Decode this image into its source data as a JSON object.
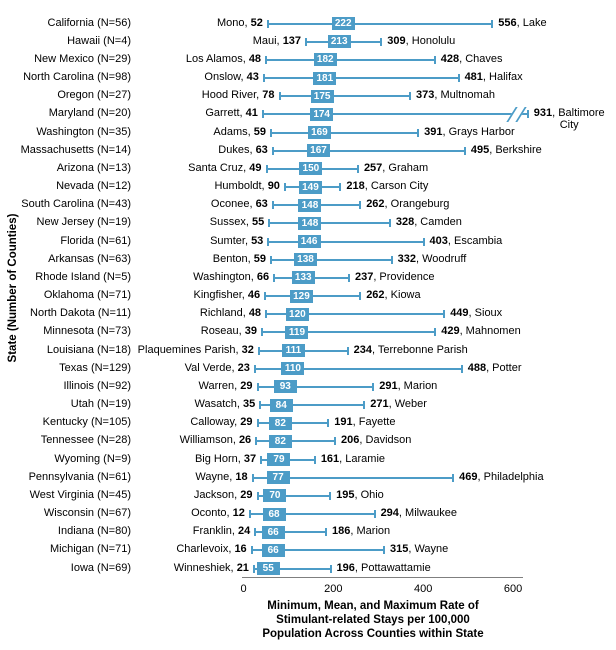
{
  "chart_data": {
    "type": "range",
    "title": "",
    "xlabel": "Minimum, Mean, and Maximum Rate of Stimulant-related Stays per 100,000 Population Across Counties within State",
    "xlabel_lines": [
      "Minimum, Mean, and Maximum Rate of",
      "Stimulant-related Stays per 100,000",
      "Population Across  Counties within State"
    ],
    "ylabel": "State (Number of Counties)",
    "xlim": [
      0,
      600
    ],
    "xticks": [
      0,
      200,
      400,
      600
    ],
    "legend": "none",
    "grid": false,
    "colors": {
      "bar": "#4C9CC7",
      "mean_text": "#ffffff",
      "axis": "#7f7f7f",
      "text": "#000000"
    },
    "rows": [
      {
        "state": "California",
        "n": 56,
        "min_county": "Mono",
        "min": 52,
        "mean": 222,
        "max": 556,
        "max_county": "Lake"
      },
      {
        "state": "Hawaii",
        "n": 4,
        "min_county": "Maui",
        "min": 137,
        "mean": 213,
        "max": 309,
        "max_county": "Honolulu"
      },
      {
        "state": "New Mexico",
        "n": 29,
        "min_county": "Los Alamos",
        "min": 48,
        "mean": 182,
        "max": 428,
        "max_county": "Chaves"
      },
      {
        "state": "North Carolina",
        "n": 98,
        "min_county": "Onslow",
        "min": 43,
        "mean": 181,
        "max": 481,
        "max_county": "Halifax"
      },
      {
        "state": "Oregon",
        "n": 27,
        "min_county": "Hood River",
        "min": 78,
        "mean": 175,
        "max": 373,
        "max_county": "Multnomah"
      },
      {
        "state": "Maryland",
        "n": 20,
        "min_county": "Garrett",
        "min": 41,
        "mean": 174,
        "max": 931,
        "max_county": "Baltimore City",
        "max_county_lines": [
          "Baltimore",
          "City"
        ],
        "axis_break": true,
        "display_max": 635
      },
      {
        "state": "Washington",
        "n": 35,
        "min_county": "Adams",
        "min": 59,
        "mean": 169,
        "max": 391,
        "max_county": "Grays Harbor"
      },
      {
        "state": "Massachusetts",
        "n": 14,
        "min_county": "Dukes",
        "min": 63,
        "mean": 167,
        "max": 495,
        "max_county": "Berkshire"
      },
      {
        "state": "Arizona",
        "n": 13,
        "min_county": "Santa Cruz",
        "min": 49,
        "mean": 150,
        "max": 257,
        "max_county": "Graham"
      },
      {
        "state": "Nevada",
        "n": 12,
        "min_county": "Humboldt",
        "min": 90,
        "mean": 149,
        "max": 218,
        "max_county": "Carson City"
      },
      {
        "state": "South Carolina",
        "n": 43,
        "min_county": "Oconee",
        "min": 63,
        "mean": 148,
        "max": 262,
        "max_county": "Orangeburg"
      },
      {
        "state": "New Jersey",
        "n": 19,
        "min_county": "Sussex",
        "min": 55,
        "mean": 148,
        "max": 328,
        "max_county": "Camden"
      },
      {
        "state": "Florida",
        "n": 61,
        "min_county": "Sumter",
        "min": 53,
        "mean": 146,
        "max": 403,
        "max_county": "Escambia"
      },
      {
        "state": "Arkansas",
        "n": 63,
        "min_county": "Benton",
        "min": 59,
        "mean": 138,
        "max": 332,
        "max_county": "Woodruff"
      },
      {
        "state": "Rhode Island",
        "n": 5,
        "min_county": "Washington",
        "min": 66,
        "mean": 133,
        "max": 237,
        "max_county": "Providence"
      },
      {
        "state": "Oklahoma",
        "n": 71,
        "min_county": "Kingfisher",
        "min": 46,
        "mean": 129,
        "max": 262,
        "max_county": "Kiowa"
      },
      {
        "state": "North Dakota",
        "n": 11,
        "min_county": "Richland",
        "min": 48,
        "mean": 120,
        "max": 449,
        "max_county": "Sioux"
      },
      {
        "state": "Minnesota",
        "n": 73,
        "min_county": "Roseau",
        "min": 39,
        "mean": 119,
        "max": 429,
        "max_county": "Mahnomen"
      },
      {
        "state": "Louisiana",
        "n": 18,
        "min_county": "Plaquemines Parish",
        "min": 32,
        "mean": 111,
        "max": 234,
        "max_county": "Terrebonne Parish"
      },
      {
        "state": "Texas",
        "n": 129,
        "min_county": "Val Verde",
        "min": 23,
        "mean": 110,
        "max": 488,
        "max_county": "Potter"
      },
      {
        "state": "Illinois",
        "n": 92,
        "min_county": "Warren",
        "min": 29,
        "mean": 93,
        "max": 291,
        "max_county": "Marion"
      },
      {
        "state": "Utah",
        "n": 19,
        "min_county": "Wasatch",
        "min": 35,
        "mean": 84,
        "max": 271,
        "max_county": "Weber"
      },
      {
        "state": "Kentucky",
        "n": 105,
        "min_county": "Calloway",
        "min": 29,
        "mean": 82,
        "max": 191,
        "max_county": "Fayette"
      },
      {
        "state": "Tennessee",
        "n": 28,
        "min_county": "Williamson",
        "min": 26,
        "mean": 82,
        "max": 206,
        "max_county": "Davidson"
      },
      {
        "state": "Wyoming",
        "n": 9,
        "min_county": "Big Horn",
        "min": 37,
        "mean": 79,
        "max": 161,
        "max_county": "Laramie"
      },
      {
        "state": "Pennsylvania",
        "n": 61,
        "min_county": "Wayne",
        "min": 18,
        "mean": 77,
        "max": 469,
        "max_county": "Philadelphia"
      },
      {
        "state": "West Virginia",
        "n": 45,
        "min_county": "Jackson",
        "min": 29,
        "mean": 70,
        "max": 195,
        "max_county": "Ohio"
      },
      {
        "state": "Wisconsin",
        "n": 67,
        "min_county": "Oconto",
        "min": 12,
        "mean": 68,
        "max": 294,
        "max_county": "Milwaukee"
      },
      {
        "state": "Indiana",
        "n": 80,
        "min_county": "Franklin",
        "min": 24,
        "mean": 66,
        "max": 186,
        "max_county": "Marion"
      },
      {
        "state": "Michigan",
        "n": 71,
        "min_county": "Charlevoix",
        "min": 16,
        "mean": 66,
        "max": 315,
        "max_county": "Wayne"
      },
      {
        "state": "Iowa",
        "n": 69,
        "min_county": "Winneshiek",
        "min": 21,
        "mean": 55,
        "max": 196,
        "max_county": "Pottawattamie"
      }
    ]
  }
}
